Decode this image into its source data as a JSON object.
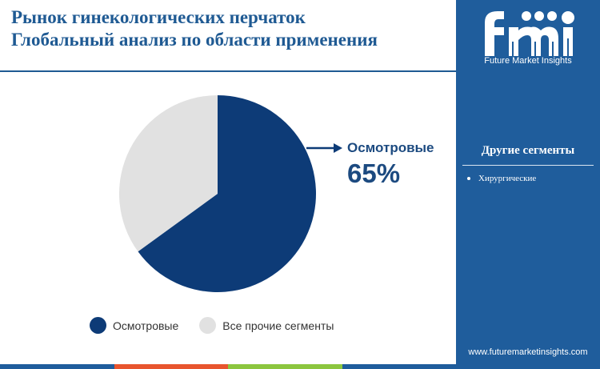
{
  "header": {
    "title_line1": "Рынок гинекологических перчаток",
    "title_line2": "Глобальный анализ по области применения"
  },
  "chart_data": {
    "type": "pie",
    "title": "Рынок гинекологических перчаток Глобальный анализ по области применения",
    "slices": [
      {
        "label": "Осмотровые",
        "value": 65,
        "color": "#0d3b77"
      },
      {
        "label": "Все прочие сегменты",
        "value": 35,
        "color": "#e1e1e1"
      }
    ],
    "legend_position": "bottom"
  },
  "callout": {
    "label": "Осмотровые",
    "value": "65%"
  },
  "sidebar": {
    "brand": "Future Market Insights",
    "heading": "Другие сегменты",
    "items": [
      "Хирургические"
    ],
    "website": "www.futuremarketinsights.com"
  },
  "colors": {
    "primary": "#1f5d9c",
    "dark_blue": "#0d3b77",
    "grey": "#e1e1e1",
    "bottom_bar": [
      "#1f5d9c",
      "#e8552e",
      "#8cc63f",
      "#1f5d9c"
    ]
  }
}
